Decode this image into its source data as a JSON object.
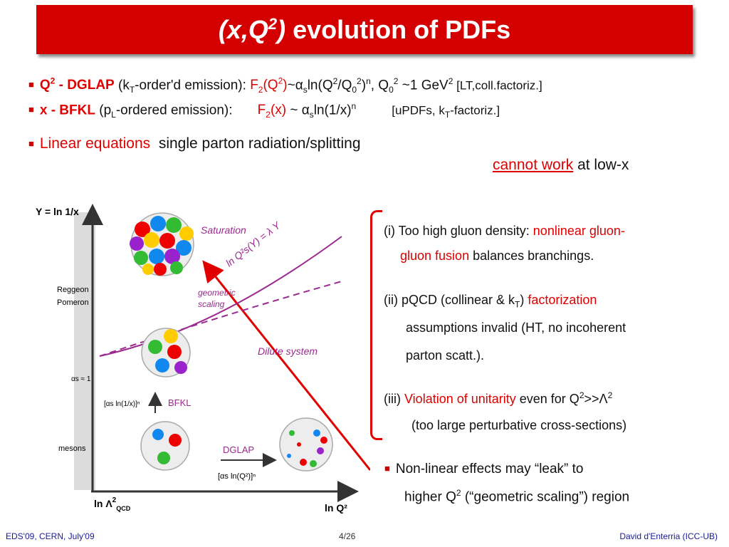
{
  "title": {
    "italic_part": "(x,Q",
    "italic_sup": "2",
    "italic_close": ")",
    "rest": " evolution of PDFs"
  },
  "bullets": {
    "dglap": {
      "q2": "Q",
      "q2_sup": "2",
      "name": " - DGLAP",
      "kt_open": " (k",
      "kt_sub": "T",
      "kt_rest": "-order'd emission): ",
      "f2": "F",
      "f2_sub": "2",
      "f2_arg": "(Q",
      "f2_arg_sup": "2",
      "f2_arg_close": ")",
      "rest1": "~",
      "alpha": "α",
      "alpha_sub": "s",
      "rest2": "ln(Q",
      "rest2_sup": "2",
      "rest3": "/Q",
      "rest3_sub": "0",
      "rest3_sup": "2",
      "rest4": ")",
      "rest4_sup": "n",
      "rest5": ", Q",
      "rest5_sub": "0",
      "rest5_sup": "2",
      "rest6": " ~1 GeV",
      "rest6_sup": "2",
      "rest7": " [LT,coll.factoriz.]"
    },
    "bfkl": {
      "name": "x - BFKL",
      "pl_open": " (p",
      "pl_sub": "L",
      "pl_rest": "-ordered emission):    ",
      "f2": "F",
      "f2_sub": "2",
      "f2_arg": "(x)",
      "rest1": " ~ ",
      "alpha": "α",
      "alpha_sub": "s",
      "rest2": "ln(1/x)",
      "rest2_sup": "n",
      "bracket": "[uPDFs, k",
      "bracket_sub": "T",
      "bracket_end": "-factoriz.]"
    },
    "linear": {
      "red": "Linear equations",
      "rest": "  single parton radiation/splitting"
    },
    "cannot": {
      "red": "cannot work",
      "rest": " at low-x"
    }
  },
  "diagram": {
    "y_axis_label": "Y = ln 1/x",
    "x_axis_label": "ln Q²",
    "x_origin_label": "ln Λ",
    "x_origin_sup": "2",
    "x_origin_sub": "QCD",
    "reggeon": "Reggeon",
    "pomeron": "Pomeron",
    "alpha_approx": "αs ≈ 1",
    "mesons": "mesons",
    "saturation": "Saturation",
    "geometric1": "geometric",
    "geometric2": "scaling",
    "dilute": "Dilute system",
    "bfkl": "BFKL",
    "dglap": "DGLAP",
    "bfkl_formula": "[αs ln(1/x)]ⁿ",
    "dglap_formula": "[αs ln(Q²)]ⁿ",
    "sat_line": "ln Q²s(Y) = λ Y"
  },
  "notes": {
    "i_1": "(i) Too high gluon density: ",
    "i_red1": "nonlinear gluon-",
    "i_red2": "gluon fusion",
    "i_2": " balances branchings.",
    "ii_1": "(ii) pQCD (collinear & k",
    "ii_sub": "T",
    "ii_2": ") ",
    "ii_red": "factorization",
    "ii_3": "assumptions invalid (HT, no incoherent",
    "ii_4": "parton scatt.).",
    "iii_1": "(iii) ",
    "iii_red": "Violation of unitarity",
    "iii_2": " even for Q",
    "iii_sup": "2",
    "iii_3": ">>",
    "iii_lambda": "Λ",
    "iii_sup2": "2",
    "iii_4": "(too large perturbative cross-sections)",
    "leak_1": "Non-linear effects may “leak” to",
    "leak_2": "higher Q",
    "leak_sup": "2",
    "leak_3": " (“geometric scaling”) region"
  },
  "footer": {
    "left": "EDS'09, CERN, July'09",
    "center": "4/26",
    "right": "David d'Enterria (ICC-UB)"
  }
}
